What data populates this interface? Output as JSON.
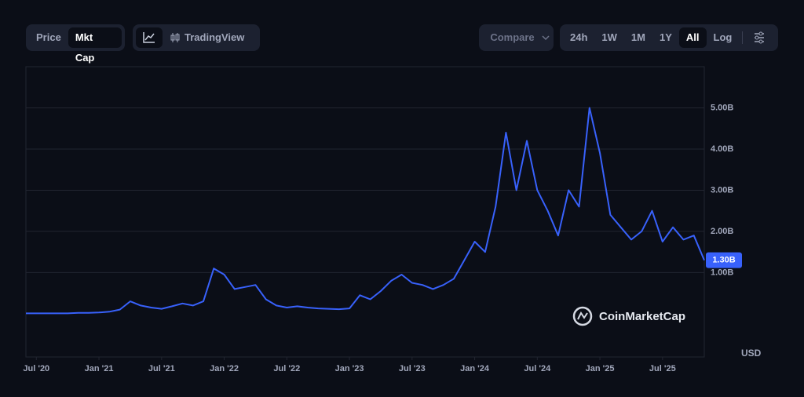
{
  "controls": {
    "tabs": [
      "Price",
      "Mkt Cap"
    ],
    "active_tab": "Mkt Cap",
    "trading_view": "TradingView",
    "compare": "Compare",
    "ranges": [
      "24h",
      "1W",
      "1M",
      "1Y",
      "All"
    ],
    "active_range": "All",
    "log": "Log"
  },
  "watermark": "CoinMarketCap",
  "currency": "USD",
  "chart_data": {
    "type": "line",
    "color": "#3861fb",
    "grid": true,
    "x": [
      "2020-06",
      "2020-07",
      "2020-08",
      "2020-09",
      "2020-10",
      "2020-11",
      "2020-12",
      "2021-01",
      "2021-02",
      "2021-03",
      "2021-04",
      "2021-05",
      "2021-06",
      "2021-07",
      "2021-08",
      "2021-09",
      "2021-10",
      "2021-11",
      "2021-12",
      "2022-01",
      "2022-02",
      "2022-03",
      "2022-04",
      "2022-05",
      "2022-06",
      "2022-07",
      "2022-08",
      "2022-09",
      "2022-10",
      "2022-11",
      "2022-12",
      "2023-01",
      "2023-02",
      "2023-03",
      "2023-04",
      "2023-05",
      "2023-06",
      "2023-07",
      "2023-08",
      "2023-09",
      "2023-10",
      "2023-11",
      "2023-12",
      "2024-01",
      "2024-02",
      "2024-03",
      "2024-04",
      "2024-05",
      "2024-06",
      "2024-07",
      "2024-08",
      "2024-09",
      "2024-10",
      "2024-11",
      "2024-12",
      "2025-01",
      "2025-02",
      "2025-03",
      "2025-04",
      "2025-05",
      "2025-06",
      "2025-07",
      "2025-08",
      "2025-09",
      "2025-10",
      "2025-11"
    ],
    "values": [
      10000000.0,
      10000000.0,
      10000000.0,
      10000000.0,
      10000000.0,
      20000000.0,
      20000000.0,
      30000000.0,
      50000000.0,
      100000000.0,
      300000000.0,
      200000000.0,
      150000000.0,
      120000000.0,
      180000000.0,
      250000000.0,
      200000000.0,
      300000000.0,
      1100000000.0,
      950000000.0,
      600000000.0,
      650000000.0,
      700000000.0,
      350000000.0,
      200000000.0,
      150000000.0,
      180000000.0,
      150000000.0,
      130000000.0,
      120000000.0,
      110000000.0,
      130000000.0,
      450000000.0,
      350000000.0,
      550000000.0,
      800000000.0,
      950000000.0,
      750000000.0,
      700000000.0,
      600000000.0,
      700000000.0,
      850000000.0,
      1300000000.0,
      1750000000.0,
      1500000000.0,
      2600000000.0,
      4400000000.0,
      3000000000.0,
      4200000000.0,
      3000000000.0,
      2500000000.0,
      1900000000.0,
      3000000000.0,
      2600000000.0,
      5000000000.0,
      3900000000.0,
      2400000000.0,
      2100000000.0,
      1800000000.0,
      2000000000.0,
      2500000000.0,
      1750000000.0,
      2100000000.0,
      1800000000.0,
      1900000000.0,
      1300000000.0
    ],
    "current_value": {
      "value": 1300000000.0,
      "label": "1.30B"
    },
    "xlim": [
      "2020-06",
      "2025-11"
    ],
    "xticks": [
      {
        "value": "2020-07",
        "label": "Jul '20"
      },
      {
        "value": "2021-01",
        "label": "Jan '21"
      },
      {
        "value": "2021-07",
        "label": "Jul '21"
      },
      {
        "value": "2022-01",
        "label": "Jan '22"
      },
      {
        "value": "2022-07",
        "label": "Jul '22"
      },
      {
        "value": "2023-01",
        "label": "Jan '23"
      },
      {
        "value": "2023-07",
        "label": "Jul '23"
      },
      {
        "value": "2024-01",
        "label": "Jan '24"
      },
      {
        "value": "2024-07",
        "label": "Jul '24"
      },
      {
        "value": "2025-01",
        "label": "Jan '25"
      },
      {
        "value": "2025-07",
        "label": "Jul '25"
      }
    ],
    "ylim": [
      -1050000000.0,
      6000000000.0
    ],
    "yticks": [
      {
        "value": 1000000000.0,
        "label": "1.00B"
      },
      {
        "value": 2000000000.0,
        "label": "2.00B"
      },
      {
        "value": 3000000000.0,
        "label": "3.00B"
      },
      {
        "value": 4000000000.0,
        "label": "4.00B"
      },
      {
        "value": 5000000000.0,
        "label": "5.00B"
      }
    ]
  }
}
